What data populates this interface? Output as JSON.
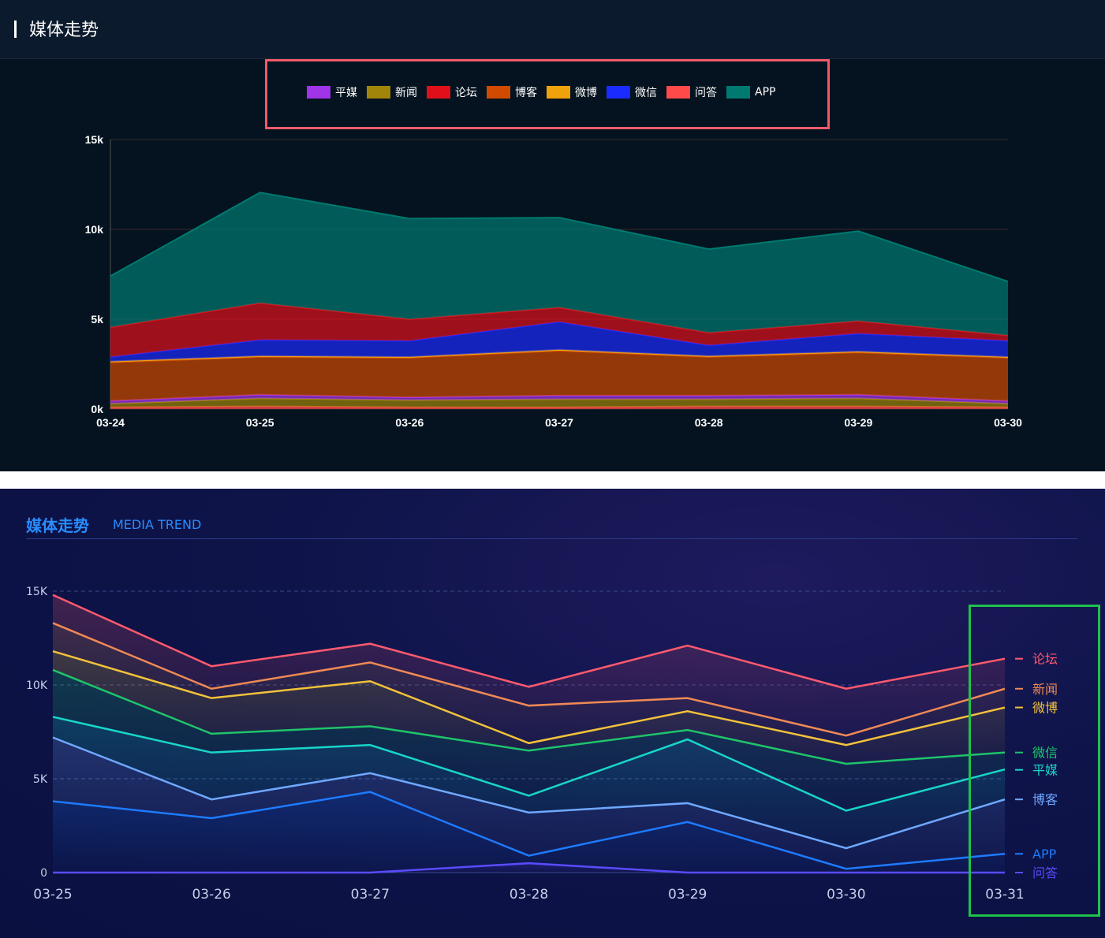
{
  "panel1": {
    "title": "媒体走势",
    "legend_box_color": "#f05a6a"
  },
  "panel2": {
    "title": "媒体走势",
    "subtitle": "MEDIA TREND",
    "highlight_box_color": "#1fc24a"
  },
  "chart_data": [
    {
      "type": "area",
      "stacked": true,
      "categories": [
        "03-24",
        "03-25",
        "03-26",
        "03-27",
        "03-28",
        "03-29",
        "03-30"
      ],
      "y_ticks": [
        "0k",
        "5k",
        "10k",
        "15k"
      ],
      "ylim": [
        0,
        15000
      ],
      "grid": true,
      "legend_position": "top-center",
      "series": [
        {
          "name": "问答",
          "color": "#ff4a4a",
          "values": [
            100,
            150,
            100,
            100,
            150,
            150,
            100
          ]
        },
        {
          "name": "新闻",
          "color": "#a0850a",
          "values": [
            200,
            450,
            400,
            450,
            400,
            450,
            200
          ]
        },
        {
          "name": "平媒",
          "color": "#a034e8",
          "values": [
            150,
            200,
            150,
            200,
            200,
            200,
            150
          ]
        },
        {
          "name": "博客",
          "color": "#d04a00",
          "values": [
            2150,
            2100,
            2200,
            2500,
            2150,
            2350,
            2400
          ]
        },
        {
          "name": "微博",
          "color": "#f0a20a",
          "values": [
            50,
            50,
            50,
            50,
            50,
            50,
            50
          ]
        },
        {
          "name": "微信",
          "color": "#1a2bff",
          "values": [
            250,
            900,
            900,
            1550,
            600,
            1000,
            900
          ]
        },
        {
          "name": "论坛",
          "color": "#e0101a",
          "values": [
            1650,
            2050,
            1200,
            800,
            700,
            700,
            300
          ]
        },
        {
          "name": "APP",
          "color": "#007a70",
          "values": [
            2850,
            6150,
            5600,
            5000,
            4650,
            5000,
            3000
          ]
        }
      ],
      "legend_order": [
        "平媒",
        "新闻",
        "论坛",
        "博客",
        "微博",
        "微信",
        "问答",
        "APP"
      ]
    },
    {
      "type": "area",
      "stacked": true,
      "categories": [
        "03-25",
        "03-26",
        "03-27",
        "03-28",
        "03-29",
        "03-30",
        "03-31"
      ],
      "y_ticks": [
        "0",
        "5K",
        "10K",
        "15K"
      ],
      "ylim": [
        0,
        15000
      ],
      "grid": true,
      "legend_position": "right",
      "series": [
        {
          "name": "问答",
          "color": "#5b4bff",
          "values": [
            0,
            0,
            0,
            500,
            0,
            0,
            0
          ]
        },
        {
          "name": "APP",
          "color": "#1e7bff",
          "values": [
            3800,
            2900,
            4300,
            400,
            2700,
            200,
            1000
          ]
        },
        {
          "name": "博客",
          "color": "#6fa8ff",
          "values": [
            3400,
            1000,
            1000,
            2300,
            1000,
            1100,
            2900
          ]
        },
        {
          "name": "平媒",
          "color": "#18d6c8",
          "values": [
            1100,
            2500,
            1500,
            900,
            3400,
            2000,
            1600
          ]
        },
        {
          "name": "微信",
          "color": "#1fc46a",
          "values": [
            2500,
            1000,
            1000,
            2400,
            500,
            2500,
            900
          ]
        },
        {
          "name": "微博",
          "color": "#f2c23a",
          "values": [
            1000,
            1900,
            2400,
            400,
            1000,
            1000,
            2400
          ]
        },
        {
          "name": "新闻",
          "color": "#f08a55",
          "values": [
            1500,
            500,
            1000,
            2000,
            700,
            500,
            1000
          ]
        },
        {
          "name": "论坛",
          "color": "#ff5a6e",
          "values": [
            1500,
            1200,
            1000,
            1000,
            2800,
            2500,
            1600
          ]
        }
      ],
      "legend_order": [
        "论坛",
        "新闻",
        "微博",
        "微信",
        "平媒",
        "博客",
        "APP",
        "问答"
      ]
    }
  ]
}
